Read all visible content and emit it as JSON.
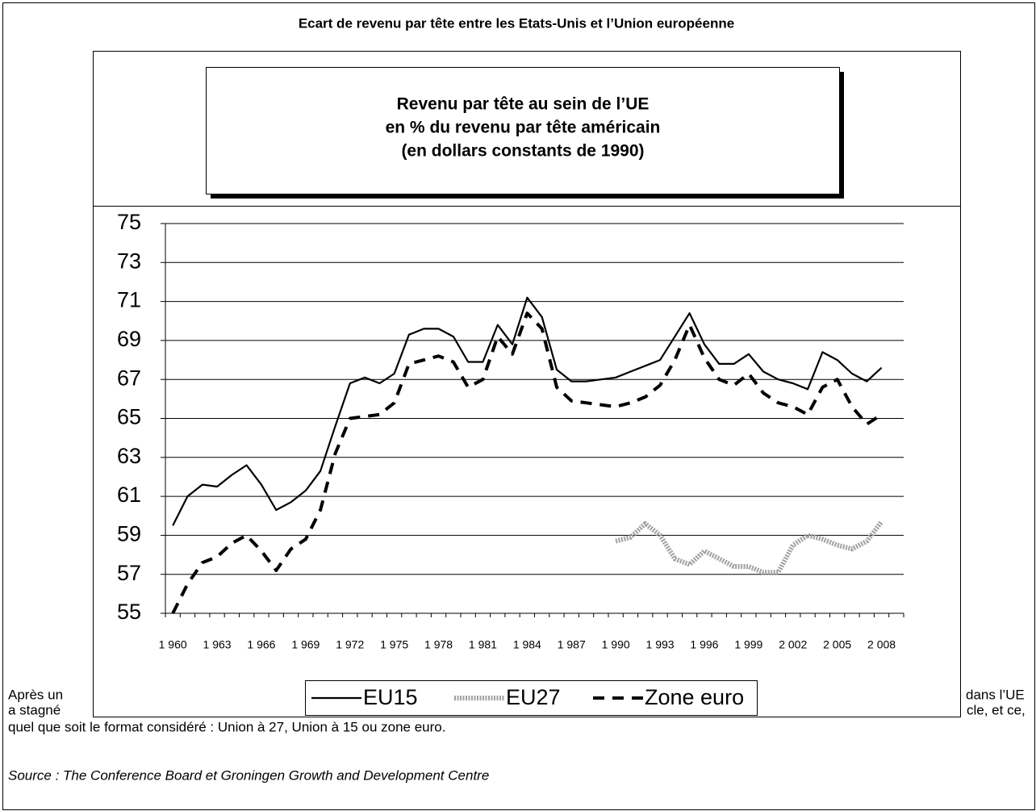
{
  "heading": "Ecart de revenu par tête entre les Etats-Unis et l’Union européenne",
  "text_fragments": [
    "Après un",
    "dans l’UE",
    "a stagné",
    "cle, et ce,",
    "quel que soit le format considéré : Union à 27, Union à 15 ou zone euro."
  ],
  "source": "Source : The Conference Board et Groningen Growth and Development Centre",
  "chart_data": {
    "type": "line",
    "title": [
      "Revenu par tête au sein de l’UE",
      "en % du revenu par tête américain",
      " (en dollars constants de 1990)"
    ],
    "categories": [
      "1 960",
      null,
      null,
      "1 963",
      null,
      null,
      "1 966",
      null,
      null,
      "1 969",
      null,
      null,
      "1 972",
      null,
      null,
      "1 975",
      null,
      null,
      "1 978",
      null,
      null,
      "1 981",
      null,
      null,
      "1 984",
      null,
      null,
      "1 987",
      null,
      null,
      "1 990",
      null,
      null,
      "1 993",
      null,
      null,
      "1 996",
      null,
      null,
      "1 999",
      null,
      null,
      "2 002",
      null,
      null,
      "2 005",
      null,
      null,
      "2 008",
      null
    ],
    "ylim": [
      55,
      75
    ],
    "yticks": [
      55,
      57,
      59,
      61,
      63,
      65,
      67,
      69,
      71,
      73,
      75
    ],
    "grid": true,
    "legend": "bottom",
    "series": [
      {
        "name": "EU15",
        "color": "#000000",
        "style": "solid",
        "values": [
          59.5,
          61.0,
          61.6,
          61.5,
          62.1,
          62.6,
          61.6,
          60.3,
          60.7,
          61.3,
          62.3,
          64.6,
          66.8,
          67.1,
          66.8,
          67.3,
          69.3,
          69.6,
          69.6,
          69.2,
          67.9,
          67.9,
          69.8,
          68.8,
          71.2,
          70.2,
          67.5,
          66.9,
          66.9,
          67.0,
          67.1,
          67.4,
          67.7,
          68.0,
          69.2,
          70.4,
          68.8,
          67.8,
          67.8,
          68.3,
          67.4,
          67.0,
          66.8,
          66.5,
          68.4,
          68.0,
          67.3,
          66.9,
          67.6,
          null
        ]
      },
      {
        "name": "EU27",
        "color": "#a0a0a0",
        "style": "hatched",
        "values": [
          null,
          null,
          null,
          null,
          null,
          null,
          null,
          null,
          null,
          null,
          null,
          null,
          null,
          null,
          null,
          null,
          null,
          null,
          null,
          null,
          null,
          null,
          null,
          null,
          null,
          null,
          null,
          null,
          null,
          null,
          58.7,
          58.9,
          59.6,
          59.0,
          57.8,
          57.5,
          58.2,
          57.8,
          57.4,
          57.4,
          57.1,
          57.1,
          58.5,
          59.0,
          58.8,
          58.5,
          58.3,
          58.7,
          59.7,
          null
        ]
      },
      {
        "name": "Zone euro",
        "color": "#000000",
        "style": "dashed",
        "values": [
          55.0,
          56.5,
          57.6,
          57.9,
          58.6,
          59.0,
          58.2,
          57.2,
          58.3,
          58.8,
          60.3,
          63.2,
          65.0,
          65.1,
          65.2,
          65.8,
          67.8,
          68.0,
          68.2,
          67.9,
          66.6,
          67.0,
          69.2,
          68.3,
          70.4,
          69.6,
          66.6,
          65.9,
          65.8,
          65.7,
          65.6,
          65.8,
          66.1,
          66.7,
          68.0,
          69.8,
          68.1,
          67.0,
          66.7,
          67.3,
          66.3,
          65.8,
          65.6,
          65.2,
          66.6,
          67.0,
          65.6,
          64.7,
          65.2,
          null
        ]
      }
    ]
  }
}
